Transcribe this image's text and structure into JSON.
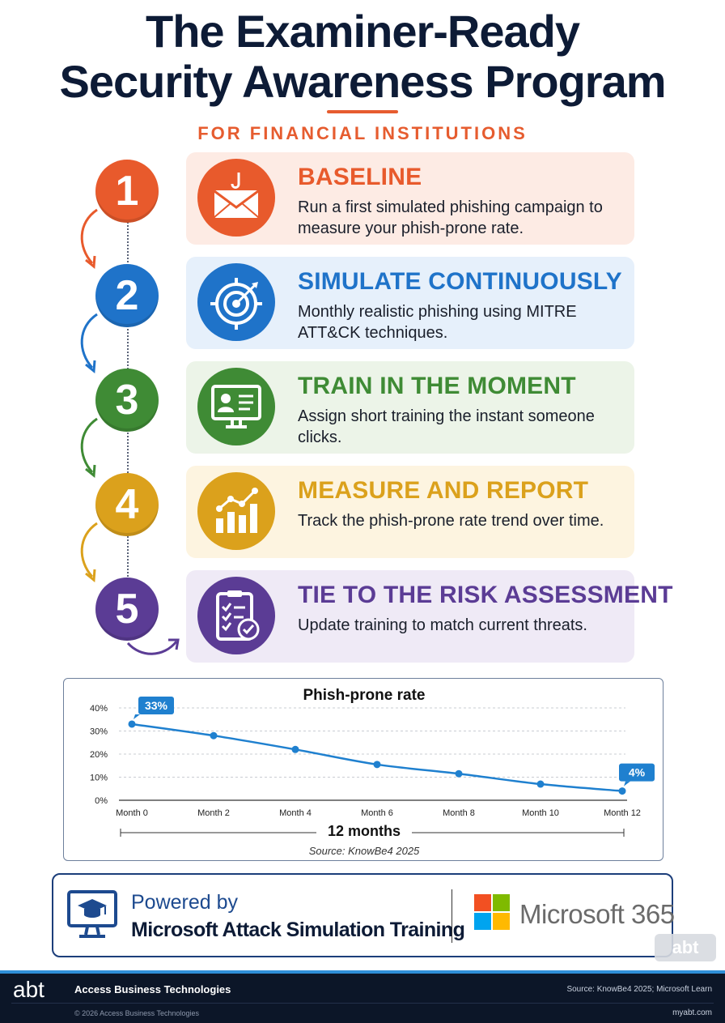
{
  "header": {
    "title_line1": "The Examiner-Ready",
    "title_line2": "Security Awareness Program",
    "subtitle": "FOR FINANCIAL INSTITUTIONS"
  },
  "steps": [
    {
      "number": "1",
      "title": "BASELINE",
      "text": "Run a first simulated phishing campaign to measure your phish-prone rate.",
      "icon": "phishing-email-icon",
      "color": "#e85a2c",
      "bg": "#fdebe4"
    },
    {
      "number": "2",
      "title": "SIMULATE CONTINUOUSLY",
      "text": "Monthly realistic phishing using MITRE ATT&CK techniques.",
      "icon": "target-icon",
      "color": "#1f73c9",
      "bg": "#e6f0fb"
    },
    {
      "number": "3",
      "title": "TRAIN IN THE MOMENT",
      "text": "Assign short training the instant someone clicks.",
      "icon": "training-monitor-icon",
      "color": "#3f8b35",
      "bg": "#ecf4e8"
    },
    {
      "number": "4",
      "title": "MEASURE AND REPORT",
      "text": "Track the phish-prone rate trend over time.",
      "icon": "bar-chart-icon",
      "color": "#dba11c",
      "bg": "#fdf4e0"
    },
    {
      "number": "5",
      "title": "TIE TO THE RISK ASSESSMENT",
      "text": "Update training to match current threats.",
      "icon": "checklist-icon",
      "color": "#5b3c95",
      "bg": "#efeaf6"
    }
  ],
  "chart_data": {
    "type": "line",
    "title": "Phish-prone rate",
    "x": [
      "Month 0",
      "Month 2",
      "Month 4",
      "Month 6",
      "Month 8",
      "Month 10",
      "Month 12"
    ],
    "values": [
      33,
      28,
      22,
      15.5,
      11.5,
      7,
      4
    ],
    "ylim": [
      0,
      40
    ],
    "yticks": [
      "0%",
      "10%",
      "20%",
      "30%",
      "40%"
    ],
    "annotations": [
      "33%",
      "4%"
    ],
    "span_label": "12 months",
    "source": "Source: KnowBe4 2025",
    "grid": true,
    "line_color": "#1f80cf"
  },
  "powered": {
    "line1": "Powered by",
    "line2": "Microsoft Attack Simulation Training",
    "brand": "Microsoft 365",
    "watermark": "abt"
  },
  "footer": {
    "logo": "abt",
    "company": "Access Business Technologies",
    "source": "Source: KnowBe4 2025; Microsoft Learn",
    "copyright": "© 2026 Access Business Technologies",
    "site": "myabt.com"
  }
}
